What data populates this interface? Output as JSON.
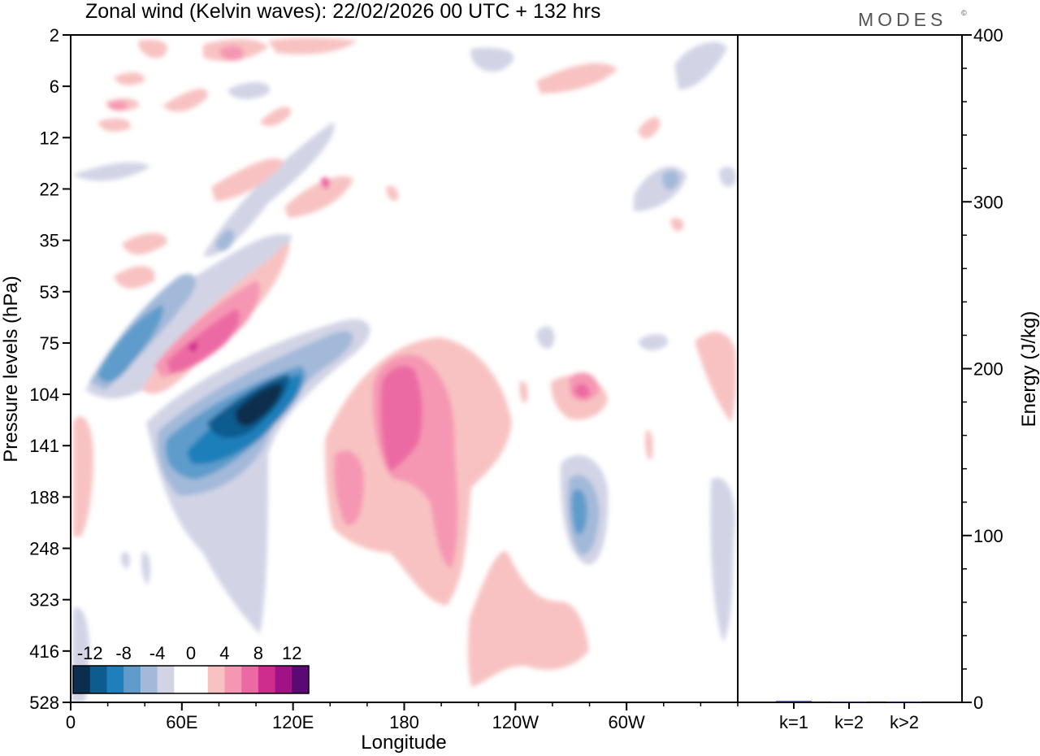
{
  "chart_data": [
    {
      "type": "heatmap",
      "title": "Zonal wind (Kelvin waves):  22/02/2026  00 UTC  + 132 hrs",
      "brand": "MODES",
      "brand_mark": "©",
      "xlabel": "Longitude",
      "ylabel": "Pressure levels (hPa)",
      "x_ticks": [
        "0",
        "60E",
        "120E",
        "180",
        "120W",
        "60W"
      ],
      "x_range": [
        0,
        360
      ],
      "y_ticks": [
        "2",
        "6",
        "12",
        "22",
        "35",
        "53",
        "75",
        "104",
        "141",
        "188",
        "248",
        "323",
        "416",
        "528"
      ],
      "colorbar": {
        "labels": [
          "-12",
          "-8",
          "-4",
          "0",
          "4",
          "8",
          "12"
        ],
        "colors": [
          "#0b2e4e",
          "#0d5b8f",
          "#1f7fba",
          "#5f9ccb",
          "#a3b9d9",
          "#d2d4e6",
          "#ffffff",
          "#ffffff",
          "#f8c2c2",
          "#f597b3",
          "#ec6aa3",
          "#cf2d8e",
          "#9e1487",
          "#5c0a73"
        ]
      },
      "features": [
        {
          "lon": 79,
          "lev": 7.4,
          "value": -14
        },
        {
          "lon": 69,
          "lev": 6.6,
          "value": 11
        },
        {
          "lon": 12,
          "lev": 6.3,
          "value": -7
        },
        {
          "lon": 35,
          "lev": 5.8,
          "value": -6
        },
        {
          "lon": 164,
          "lev": 7.4,
          "value": 9
        },
        {
          "lon": 135,
          "lev": 8.8,
          "value": 6
        },
        {
          "lon": 263,
          "lev": 9.2,
          "value": -7
        },
        {
          "lon": 267,
          "lev": 7.1,
          "value": 6
        },
        {
          "lon": 322,
          "lev": 7.2,
          "value": 3
        }
      ]
    },
    {
      "type": "bar",
      "categories": [
        "k=1",
        "k=2",
        "k>2"
      ],
      "values": [
        0.8,
        0.5,
        0.5
      ],
      "ylabel": "Energy (J/kg)",
      "ylim": [
        0,
        400
      ],
      "y_ticks": [
        "0",
        "100",
        "200",
        "300",
        "400"
      ],
      "color": "#1a1a6e"
    }
  ]
}
